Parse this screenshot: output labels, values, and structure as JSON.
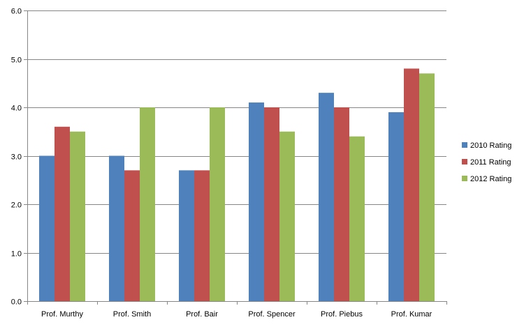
{
  "chart_data": {
    "type": "bar",
    "categories": [
      "Prof. Murthy",
      "Prof. Smith",
      "Prof. Bair",
      "Prof. Spencer",
      "Prof. Piebus",
      "Prof. Kumar"
    ],
    "series": [
      {
        "name": "2010 Rating",
        "color": "#4F81BD",
        "values": [
          3.0,
          3.0,
          2.7,
          4.1,
          4.3,
          3.9
        ]
      },
      {
        "name": "2011 Rating",
        "color": "#C0504D",
        "values": [
          3.6,
          2.7,
          2.7,
          4.0,
          4.0,
          4.8
        ]
      },
      {
        "name": "2012 Rating",
        "color": "#9BBB59",
        "values": [
          3.5,
          4.0,
          4.0,
          3.5,
          3.4,
          4.7
        ]
      }
    ],
    "yticks": [
      "0.0",
      "1.0",
      "2.0",
      "3.0",
      "4.0",
      "5.0",
      "6.0"
    ],
    "ylim": [
      0,
      6
    ],
    "grid": true,
    "legend_position": "right",
    "title": "",
    "xlabel": "",
    "ylabel": ""
  }
}
